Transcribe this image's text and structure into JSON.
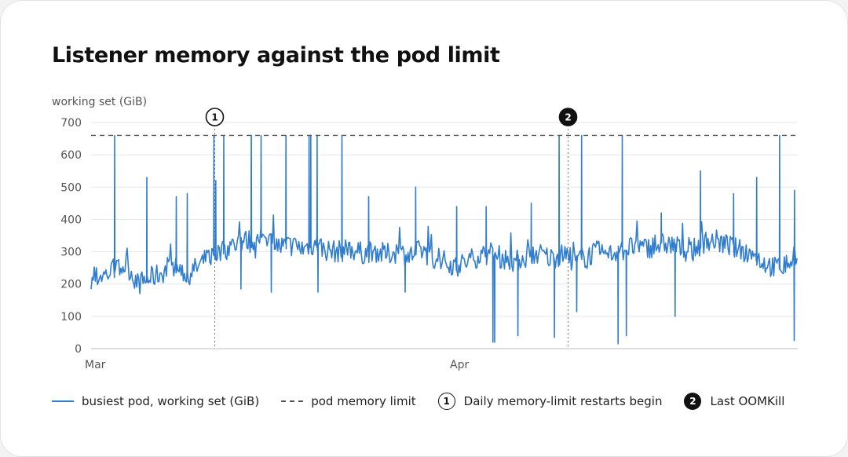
{
  "title": "Listener memory against the pod limit",
  "chart_data": {
    "type": "line",
    "ylabel": "working set (GiB)",
    "xlabel": "",
    "ylim": [
      0,
      700
    ],
    "yticks": [
      0,
      100,
      200,
      300,
      400,
      500,
      600,
      700
    ],
    "xlim": [
      "2024-03-01",
      "2024-04-30"
    ],
    "xticks": [
      {
        "date": "2024-03-01",
        "label": "Mar"
      },
      {
        "date": "2024-04-01",
        "label": "Apr"
      }
    ],
    "grid": "horizontal",
    "limit": {
      "name": "pod memory limit",
      "value": 660
    },
    "series": [
      {
        "name": "busiest pod, working set (GiB)",
        "color": "#2f7cd1",
        "x": [
          "2024-03-01",
          "2024-03-03",
          "2024-03-04",
          "2024-03-05",
          "2024-03-07",
          "2024-03-08",
          "2024-03-09",
          "2024-03-10",
          "2024-03-11",
          "2024-03-12",
          "2024-03-13",
          "2024-03-14",
          "2024-03-15",
          "2024-03-16",
          "2024-03-17",
          "2024-03-18",
          "2024-03-19",
          "2024-03-20",
          "2024-03-21",
          "2024-03-22",
          "2024-03-23",
          "2024-03-24",
          "2024-03-25",
          "2024-03-26",
          "2024-03-27",
          "2024-03-28",
          "2024-03-29",
          "2024-03-30",
          "2024-03-31",
          "2024-04-01",
          "2024-04-02",
          "2024-04-03",
          "2024-04-04",
          "2024-04-05",
          "2024-04-06",
          "2024-04-07",
          "2024-04-08",
          "2024-04-09",
          "2024-04-10",
          "2024-04-11",
          "2024-04-12",
          "2024-04-13",
          "2024-04-14",
          "2024-04-15",
          "2024-04-16",
          "2024-04-17",
          "2024-04-18",
          "2024-04-19",
          "2024-04-20",
          "2024-04-21",
          "2024-04-22",
          "2024-04-23",
          "2024-04-24",
          "2024-04-25",
          "2024-04-26",
          "2024-04-27",
          "2024-04-28",
          "2024-04-29",
          "2024-04-30"
        ],
        "values": [
          215,
          240,
          260,
          200,
          235,
          255,
          230,
          250,
          285,
          300,
          320,
          335,
          330,
          345,
          315,
          320,
          310,
          325,
          305,
          300,
          310,
          295,
          305,
          290,
          300,
          285,
          305,
          280,
          270,
          255,
          270,
          290,
          295,
          280,
          270,
          285,
          295,
          280,
          290,
          270,
          285,
          300,
          290,
          305,
          315,
          310,
          320,
          325,
          310,
          300,
          330,
          335,
          320,
          305,
          295,
          270,
          250,
          260,
          285
        ]
      }
    ],
    "spikes": [
      {
        "date": "2024-03-03",
        "value": 660
      },
      {
        "date": "2024-03-05",
        "value": 530
      },
      {
        "date": "2024-03-08",
        "value": 470
      },
      {
        "date": "2024-03-09",
        "value": 480
      },
      {
        "date": "2024-03-11",
        "value": 520
      },
      {
        "date": "2024-03-11",
        "value": 660
      },
      {
        "date": "2024-03-12",
        "value": 660
      },
      {
        "date": "2024-03-14",
        "value": 660
      },
      {
        "date": "2024-03-14",
        "value": 660
      },
      {
        "date": "2024-03-15",
        "value": 660
      },
      {
        "date": "2024-03-17",
        "value": 660
      },
      {
        "date": "2024-03-19",
        "value": 660
      },
      {
        "date": "2024-03-19",
        "value": 660
      },
      {
        "date": "2024-03-20",
        "value": 660
      },
      {
        "date": "2024-03-22",
        "value": 660
      },
      {
        "date": "2024-03-24",
        "value": 470
      },
      {
        "date": "2024-03-28",
        "value": 500
      },
      {
        "date": "2024-04-01",
        "value": 440
      },
      {
        "date": "2024-04-03",
        "value": 440
      },
      {
        "date": "2024-04-07",
        "value": 450
      },
      {
        "date": "2024-04-09",
        "value": 660
      },
      {
        "date": "2024-04-11",
        "value": 660
      },
      {
        "date": "2024-04-15",
        "value": 660
      },
      {
        "date": "2024-04-18",
        "value": 420
      },
      {
        "date": "2024-04-21",
        "value": 550
      },
      {
        "date": "2024-04-24",
        "value": 480
      },
      {
        "date": "2024-04-26",
        "value": 530
      },
      {
        "date": "2024-04-28",
        "value": 660
      },
      {
        "date": "2024-04-29",
        "value": 490
      }
    ],
    "dips": [
      {
        "date": "2024-03-13",
        "value": 185
      },
      {
        "date": "2024-03-16",
        "value": 175
      },
      {
        "date": "2024-03-20",
        "value": 175
      },
      {
        "date": "2024-03-27",
        "value": 175
      },
      {
        "date": "2024-04-04",
        "value": 20
      },
      {
        "date": "2024-04-04",
        "value": 20
      },
      {
        "date": "2024-04-06",
        "value": 40
      },
      {
        "date": "2024-04-09",
        "value": 35
      },
      {
        "date": "2024-04-11",
        "value": 115
      },
      {
        "date": "2024-04-14",
        "value": 15
      },
      {
        "date": "2024-04-15",
        "value": 40
      },
      {
        "date": "2024-04-19",
        "value": 100
      },
      {
        "date": "2024-04-29",
        "value": 25
      }
    ],
    "annotations": [
      {
        "id": "1",
        "date": "2024-03-11",
        "label": "Daily memory-limit restarts begin",
        "style": "open"
      },
      {
        "id": "2",
        "date": "2024-04-10",
        "label": "Last OOMKill",
        "style": "filled"
      }
    ]
  },
  "legend": {
    "series_label": "busiest pod, working set (GiB)",
    "limit_label": "pod memory limit",
    "marker1_number": "1",
    "marker1_label": "Daily memory-limit restarts begin",
    "marker2_number": "2",
    "marker2_label": "Last OOMKill"
  }
}
